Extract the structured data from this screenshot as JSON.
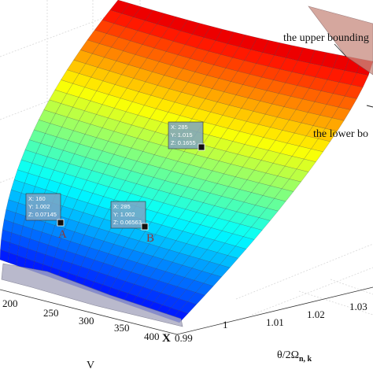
{
  "chart_data": {
    "type": "surface3d",
    "title": "",
    "colormap": "jet",
    "axes": {
      "V": {
        "label": "V",
        "ticks": [
          "200",
          "250",
          "300",
          "350",
          "400"
        ],
        "range": [
          180,
          400
        ]
      },
      "theta": {
        "label_main": "θ/2Ω",
        "label_sub": "n, k",
        "ticks": [
          "0.99",
          "1",
          "1.01",
          "1.02",
          "1.03"
        ],
        "range": [
          0.99,
          1.035
        ]
      },
      "z_axis_letter": "X"
    },
    "annotations": {
      "upper": "the upper bounding",
      "lower": "the lower bo"
    },
    "datatips": [
      {
        "lines": [
          "X: 285",
          "Y: 1.015",
          "Z: 0.1655"
        ]
      },
      {
        "lines": [
          "X: 160",
          "Y: 1.002",
          "Z: 0.07145"
        ],
        "point_label": "A"
      },
      {
        "lines": [
          "X: 285",
          "Y: 1.002",
          "Z: 0.06563"
        ],
        "point_label": "B"
      }
    ]
  }
}
